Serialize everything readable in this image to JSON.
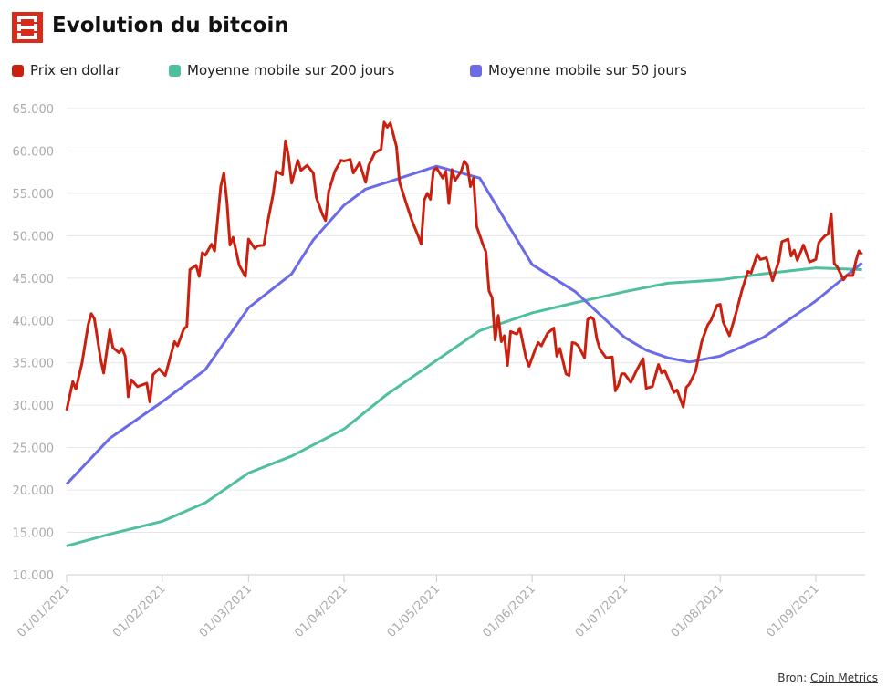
{
  "chart_data": {
    "type": "line",
    "title": "Evolution du bitcoin",
    "source_label": "Bron:",
    "source_name": "Coin Metrics",
    "xlim": [
      "2021-01-01",
      "2021-09-17"
    ],
    "xticks": [
      {
        "value": "2021-01-01",
        "label": "01/01/2021"
      },
      {
        "value": "2021-02-01",
        "label": "01/02/2021"
      },
      {
        "value": "2021-03-01",
        "label": "01/03/2021"
      },
      {
        "value": "2021-04-01",
        "label": "01/04/2021"
      },
      {
        "value": "2021-05-01",
        "label": "01/05/2021"
      },
      {
        "value": "2021-06-01",
        "label": "01/06/2021"
      },
      {
        "value": "2021-07-01",
        "label": "01/07/2021"
      },
      {
        "value": "2021-08-01",
        "label": "01/08/2021"
      },
      {
        "value": "2021-09-01",
        "label": "01/09/2021"
      }
    ],
    "ylim": [
      10000,
      65000
    ],
    "yticks": [
      {
        "value": 10000,
        "label": "10.000"
      },
      {
        "value": 15000,
        "label": "15.000"
      },
      {
        "value": 20000,
        "label": "20.000"
      },
      {
        "value": 25000,
        "label": "25.000"
      },
      {
        "value": 30000,
        "label": "30.000"
      },
      {
        "value": 35000,
        "label": "35.000"
      },
      {
        "value": 40000,
        "label": "40.000"
      },
      {
        "value": 45000,
        "label": "45.000"
      },
      {
        "value": 50000,
        "label": "50.000"
      },
      {
        "value": 55000,
        "label": "55.000"
      },
      {
        "value": 60000,
        "label": "60.000"
      },
      {
        "value": 65000,
        "label": "65.000"
      }
    ],
    "grid": true,
    "series": [
      {
        "name": "Prix en dollar",
        "color": "#c9200f",
        "x": [
          "2021-01-01",
          "2021-01-03",
          "2021-01-04",
          "2021-01-06",
          "2021-01-08",
          "2021-01-09",
          "2021-01-10",
          "2021-01-12",
          "2021-01-13",
          "2021-01-15",
          "2021-01-16",
          "2021-01-18",
          "2021-01-19",
          "2021-01-20",
          "2021-01-21",
          "2021-01-22",
          "2021-01-24",
          "2021-01-27",
          "2021-01-28",
          "2021-01-29",
          "2021-01-31",
          "2021-02-02",
          "2021-02-05",
          "2021-02-06",
          "2021-02-08",
          "2021-02-09",
          "2021-02-10",
          "2021-02-12",
          "2021-02-13",
          "2021-02-14",
          "2021-02-15",
          "2021-02-17",
          "2021-02-18",
          "2021-02-19",
          "2021-02-20",
          "2021-02-21",
          "2021-02-22",
          "2021-02-23",
          "2021-02-24",
          "2021-02-26",
          "2021-02-28",
          "2021-03-01",
          "2021-03-03",
          "2021-03-04",
          "2021-03-06",
          "2021-03-07",
          "2021-03-09",
          "2021-03-10",
          "2021-03-12",
          "2021-03-13",
          "2021-03-14",
          "2021-03-15",
          "2021-03-17",
          "2021-03-18",
          "2021-03-20",
          "2021-03-22",
          "2021-03-23",
          "2021-03-25",
          "2021-03-26",
          "2021-03-27",
          "2021-03-29",
          "2021-03-31",
          "2021-04-01",
          "2021-04-03",
          "2021-04-04",
          "2021-04-06",
          "2021-04-08",
          "2021-04-09",
          "2021-04-11",
          "2021-04-13",
          "2021-04-14",
          "2021-04-15",
          "2021-04-16",
          "2021-04-18",
          "2021-04-19",
          "2021-04-21",
          "2021-04-23",
          "2021-04-25",
          "2021-04-26",
          "2021-04-27",
          "2021-04-28",
          "2021-04-29",
          "2021-04-30",
          "2021-05-01",
          "2021-05-03",
          "2021-05-04",
          "2021-05-05",
          "2021-05-06",
          "2021-05-07",
          "2021-05-09",
          "2021-05-10",
          "2021-05-11",
          "2021-05-12",
          "2021-05-13",
          "2021-05-14",
          "2021-05-16",
          "2021-05-17",
          "2021-05-18",
          "2021-05-19",
          "2021-05-20",
          "2021-05-21",
          "2021-05-22",
          "2021-05-23",
          "2021-05-24",
          "2021-05-25",
          "2021-05-27",
          "2021-05-28",
          "2021-05-30",
          "2021-05-31",
          "2021-06-02",
          "2021-06-03",
          "2021-06-04",
          "2021-06-06",
          "2021-06-08",
          "2021-06-09",
          "2021-06-10",
          "2021-06-12",
          "2021-06-13",
          "2021-06-14",
          "2021-06-15",
          "2021-06-16",
          "2021-06-18",
          "2021-06-19",
          "2021-06-20",
          "2021-06-21",
          "2021-06-22",
          "2021-06-23",
          "2021-06-25",
          "2021-06-27",
          "2021-06-28",
          "2021-06-29",
          "2021-06-30",
          "2021-07-01",
          "2021-07-03",
          "2021-07-05",
          "2021-07-07",
          "2021-07-08",
          "2021-07-10",
          "2021-07-12",
          "2021-07-13",
          "2021-07-14",
          "2021-07-17",
          "2021-07-18",
          "2021-07-20",
          "2021-07-21",
          "2021-07-22",
          "2021-07-24",
          "2021-07-26",
          "2021-07-28",
          "2021-07-29",
          "2021-07-31",
          "2021-08-01",
          "2021-08-02",
          "2021-08-04",
          "2021-08-06",
          "2021-08-08",
          "2021-08-10",
          "2021-08-11",
          "2021-08-13",
          "2021-08-14",
          "2021-08-16",
          "2021-08-17",
          "2021-08-18",
          "2021-08-20",
          "2021-08-21",
          "2021-08-23",
          "2021-08-24",
          "2021-08-25",
          "2021-08-26",
          "2021-08-28",
          "2021-08-30",
          "2021-09-01",
          "2021-09-02",
          "2021-09-04",
          "2021-09-05",
          "2021-09-06",
          "2021-09-07",
          "2021-09-08",
          "2021-09-10",
          "2021-09-11",
          "2021-09-13",
          "2021-09-14",
          "2021-09-15",
          "2021-09-16"
        ],
        "values": [
          29400,
          32800,
          31900,
          35000,
          39500,
          40800,
          40200,
          35500,
          33800,
          38900,
          36800,
          36200,
          36700,
          35800,
          31000,
          33000,
          32200,
          32600,
          30400,
          33600,
          34300,
          33500,
          37500,
          37000,
          39000,
          39300,
          46000,
          46500,
          45200,
          48000,
          47700,
          49000,
          48200,
          52000,
          55800,
          57400,
          54000,
          48900,
          49800,
          46500,
          45200,
          49600,
          48500,
          48800,
          48900,
          51200,
          54900,
          57600,
          57200,
          61200,
          59300,
          56200,
          58900,
          57700,
          58300,
          57400,
          54500,
          52500,
          51800,
          55200,
          57600,
          58900,
          58800,
          59000,
          57400,
          58600,
          56300,
          58300,
          59800,
          60200,
          63400,
          62800,
          63300,
          60500,
          56300,
          54000,
          51800,
          50000,
          49000,
          54200,
          55000,
          54300,
          57700,
          58000,
          56800,
          57600,
          53800,
          57800,
          56500,
          57600,
          58800,
          58300,
          55800,
          56800,
          51100,
          49000,
          48100,
          43500,
          42700,
          37700,
          40600,
          37500,
          38200,
          34700,
          38700,
          38400,
          39100,
          35600,
          34600,
          36600,
          37400,
          37000,
          38500,
          39100,
          35800,
          36700,
          33700,
          33500,
          37400,
          37300,
          37000,
          35600,
          40100,
          40400,
          40100,
          37800,
          36600,
          35600,
          35700,
          31700,
          32400,
          33700,
          33700,
          32700,
          34200,
          35500,
          32000,
          32200,
          34800,
          33800,
          34100,
          31500,
          31800,
          29800,
          32100,
          32500,
          34000,
          37500,
          39500,
          40000,
          41800,
          41900,
          39800,
          38200,
          40700,
          43500,
          45800,
          45600,
          47800,
          47200,
          47400,
          46000,
          44700,
          47000,
          49300,
          49600,
          47600,
          48300,
          47100,
          48900,
          46900,
          47200,
          49200,
          50000,
          50200,
          52600,
          46700,
          46300,
          44800,
          45300,
          45300,
          47000,
          48200,
          47800
        ]
      },
      {
        "name": "Moyenne mobile sur 200 jours",
        "color": "#4fbf9f",
        "x": [
          "2021-01-01",
          "2021-01-15",
          "2021-02-01",
          "2021-02-15",
          "2021-03-01",
          "2021-03-15",
          "2021-04-01",
          "2021-04-15",
          "2021-05-01",
          "2021-05-15",
          "2021-06-01",
          "2021-06-15",
          "2021-07-01",
          "2021-07-15",
          "2021-08-01",
          "2021-08-15",
          "2021-09-01",
          "2021-09-16"
        ],
        "values": [
          13400,
          14800,
          16300,
          18500,
          22000,
          24000,
          27200,
          31300,
          35300,
          38800,
          40900,
          42100,
          43400,
          44400,
          44800,
          45500,
          46200,
          46000
        ]
      },
      {
        "name": "Moyenne mobile sur 50 jours",
        "color": "#6b6be8",
        "x": [
          "2021-01-01",
          "2021-01-15",
          "2021-02-01",
          "2021-02-15",
          "2021-03-01",
          "2021-03-15",
          "2021-03-22",
          "2021-04-01",
          "2021-04-08",
          "2021-04-15",
          "2021-05-01",
          "2021-05-15",
          "2021-06-01",
          "2021-06-15",
          "2021-07-01",
          "2021-07-08",
          "2021-07-15",
          "2021-07-22",
          "2021-08-01",
          "2021-08-15",
          "2021-09-01",
          "2021-09-16"
        ],
        "values": [
          20700,
          26100,
          30400,
          34200,
          41500,
          45500,
          49500,
          53600,
          55500,
          56300,
          58200,
          56800,
          46600,
          43400,
          38000,
          36500,
          35600,
          35100,
          35800,
          38000,
          42300,
          46800
        ]
      }
    ]
  }
}
